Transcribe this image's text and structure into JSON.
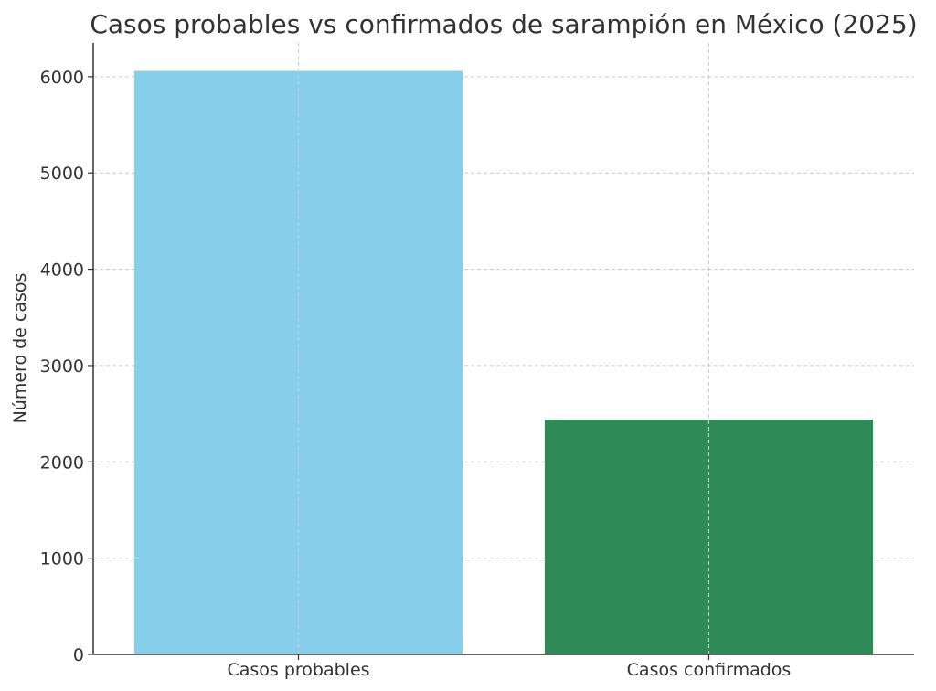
{
  "chart_data": {
    "type": "bar",
    "title": "Casos probables vs confirmados de sarampión en México (2025)",
    "xlabel": "",
    "ylabel": "Número de casos",
    "categories": [
      "Casos probables",
      "Casos confirmados"
    ],
    "values": [
      6060,
      2440
    ],
    "colors": [
      "#87ceeb",
      "#2e8b57"
    ],
    "ylim": [
      0,
      6350
    ],
    "yticks": [
      0,
      1000,
      2000,
      3000,
      4000,
      5000,
      6000
    ],
    "grid": true
  }
}
